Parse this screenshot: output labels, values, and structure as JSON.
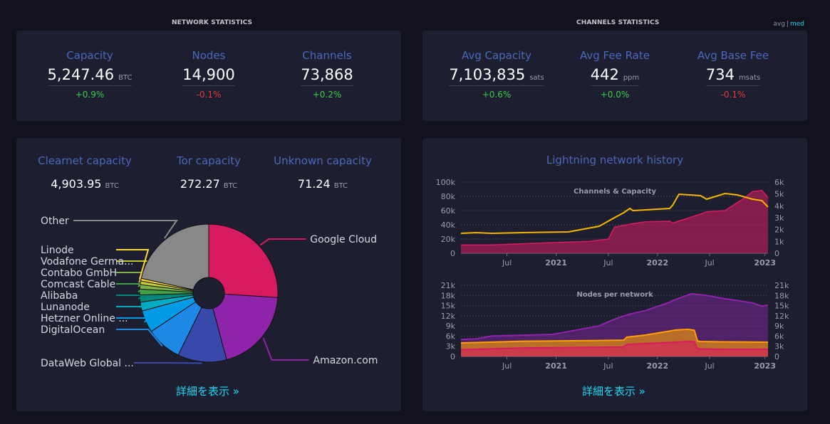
{
  "network": {
    "title": "NETWORK STATISTICS",
    "stats": [
      {
        "label": "Capacity",
        "value": "5,247.46",
        "unit": "BTC",
        "change": "+0.9%",
        "dir": "pos"
      },
      {
        "label": "Nodes",
        "value": "14,900",
        "unit": "",
        "change": "-0.1%",
        "dir": "neg"
      },
      {
        "label": "Channels",
        "value": "73,868",
        "unit": "",
        "change": "+0.2%",
        "dir": "pos"
      }
    ]
  },
  "channels": {
    "title": "CHANNELS STATISTICS",
    "toggle": {
      "avg": "avg",
      "sep": "|",
      "med": "med"
    },
    "stats": [
      {
        "label": "Avg Capacity",
        "value": "7,103,835",
        "unit": "sats",
        "change": "+0.6%",
        "dir": "pos"
      },
      {
        "label": "Avg Fee Rate",
        "value": "442",
        "unit": "ppm",
        "change": "+0.0%",
        "dir": "pos"
      },
      {
        "label": "Avg Base Fee",
        "value": "734",
        "unit": "msats",
        "change": "-0.1%",
        "dir": "neg"
      }
    ]
  },
  "capacity_split": [
    {
      "label": "Clearnet capacity",
      "value": "4,903.95",
      "unit": "BTC"
    },
    {
      "label": "Tor capacity",
      "value": "272.27",
      "unit": "BTC"
    },
    {
      "label": "Unknown capacity",
      "value": "71.24",
      "unit": "BTC"
    }
  ],
  "more_link": "詳細を表示 »",
  "history_title": "Lightning network history",
  "chart_data": [
    {
      "type": "pie",
      "slices": [
        {
          "label": "Google Cloud",
          "value": 25,
          "color": "#d81b60"
        },
        {
          "label": "Amazon.com",
          "value": 19,
          "color": "#8e24aa"
        },
        {
          "label": "DataWeb Global ...",
          "value": 11,
          "color": "#3949ab"
        },
        {
          "label": "DigitalOcean",
          "value": 8,
          "color": "#1e88e5"
        },
        {
          "label": "Hetzner Online ...",
          "value": 5,
          "color": "#039be5"
        },
        {
          "label": "Lunanode",
          "value": 2,
          "color": "#00acc1"
        },
        {
          "label": "Alibaba",
          "value": 1.6,
          "color": "#00897b"
        },
        {
          "label": "Comcast Cable",
          "value": 1.3,
          "color": "#43a047"
        },
        {
          "label": "Contabo GmbH",
          "value": 1.0,
          "color": "#7cb342"
        },
        {
          "label": "Vodafone Germa...",
          "value": 0.8,
          "color": "#c0ca33"
        },
        {
          "label": "Linode",
          "value": 0.6,
          "color": "#fdd835"
        },
        {
          "label": "Other",
          "value": 20.7,
          "color": "#888888"
        }
      ]
    },
    {
      "type": "area",
      "title": "Channels & Capacity",
      "x_ticks": [
        "Jul",
        "2021",
        "Jul",
        "2022",
        "Jul",
        "2023"
      ],
      "y_left_ticks": [
        "0",
        "20k",
        "40k",
        "60k",
        "80k",
        "100k"
      ],
      "y_right_ticks": [
        "0",
        "1k",
        "2k",
        "3k",
        "4k",
        "5k",
        "6k"
      ],
      "ylim_left": [
        0,
        100000
      ],
      "ylim_right": [
        0,
        6000
      ],
      "series": [
        {
          "color": "#d81b60",
          "axis": "right",
          "x": [
            0,
            0.1,
            0.3,
            0.42,
            0.48,
            0.5,
            0.56,
            0.6,
            0.68,
            0.69,
            0.78,
            0.8,
            0.86,
            0.92,
            0.95,
            0.98,
            1
          ],
          "values": [
            700,
            700,
            900,
            1000,
            1200,
            2200,
            2500,
            2650,
            2700,
            2550,
            3300,
            3500,
            3600,
            4600,
            5200,
            5300,
            4700
          ]
        },
        {
          "color": "#f7b500",
          "axis": "left",
          "x": [
            0,
            0.05,
            0.1,
            0.2,
            0.35,
            0.4,
            0.45,
            0.5,
            0.53,
            0.55,
            0.56,
            0.68,
            0.69,
            0.71,
            0.78,
            0.8,
            0.86,
            0.9,
            0.95,
            0.98,
            1
          ],
          "values": [
            28000,
            29000,
            28000,
            29000,
            30000,
            34000,
            38000,
            50000,
            57000,
            63000,
            60000,
            63000,
            68000,
            83000,
            81000,
            76000,
            84000,
            82000,
            76000,
            74000,
            65000
          ]
        }
      ]
    },
    {
      "type": "area",
      "title": "Nodes per network",
      "x_ticks": [
        "Jul",
        "2021",
        "Jul",
        "2022",
        "Jul",
        "2023"
      ],
      "y_ticks": [
        "0",
        "3k",
        "6k",
        "9k",
        "12k",
        "15k",
        "18k",
        "21k"
      ],
      "ylim": [
        0,
        21000
      ],
      "series": [
        {
          "color": "#8e24aa",
          "x": [
            0,
            0.05,
            0.1,
            0.3,
            0.45,
            0.5,
            0.55,
            0.6,
            0.68,
            0.69,
            0.75,
            0.8,
            0.86,
            0.9,
            0.95,
            0.98,
            1
          ],
          "values": [
            5000,
            5200,
            6000,
            6500,
            9000,
            11000,
            12500,
            13500,
            16000,
            16500,
            18500,
            18000,
            17000,
            16500,
            15800,
            14800,
            15200
          ]
        },
        {
          "color": "#ffa000",
          "x": [
            0,
            0.05,
            0.2,
            0.45,
            0.53,
            0.54,
            0.6,
            0.7,
            0.74,
            0.76,
            0.77,
            0.78,
            0.85,
            1
          ],
          "values": [
            4000,
            4100,
            4500,
            4700,
            4800,
            5700,
            6300,
            7800,
            8000,
            7700,
            4600,
            4400,
            4300,
            4200
          ]
        },
        {
          "color": "#d81b60",
          "x": [
            0,
            0.05,
            0.2,
            0.45,
            0.53,
            0.54,
            0.6,
            0.7,
            0.74,
            0.76,
            0.77,
            0.78,
            0.85,
            1
          ],
          "values": [
            2000,
            2100,
            2500,
            2700,
            2800,
            3500,
            3800,
            4200,
            4400,
            4300,
            2300,
            2200,
            2100,
            2100
          ]
        }
      ]
    }
  ]
}
